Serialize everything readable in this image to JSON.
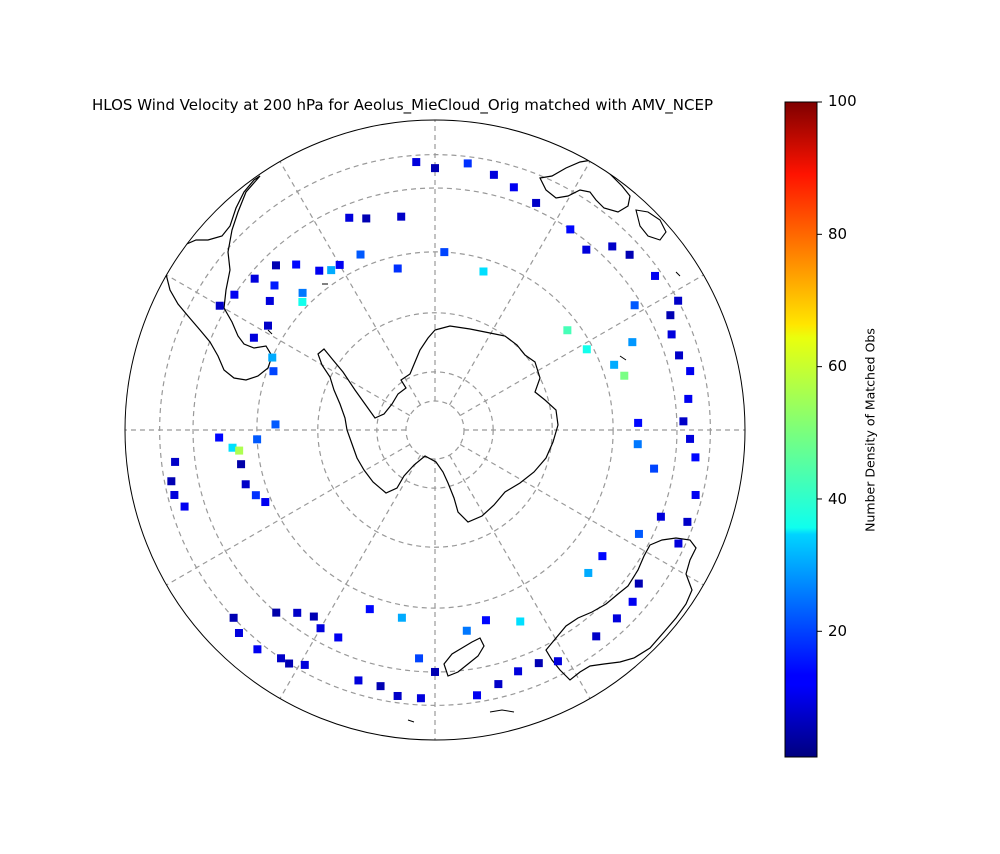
{
  "title": "HLOS Wind Velocity at 200 hPa for Aeolus_MieCloud_Orig matched with AMV_NCEP",
  "map": {
    "projection": "south-polar-stereographic",
    "background": "#ffffff",
    "coastline_color": "#000000",
    "gridline_color": "#999999",
    "gridline_style": "dashed",
    "parallel_rings": 6,
    "meridians_every_deg": 30
  },
  "colorbar": {
    "colormap": "jet",
    "min": 1,
    "max": 100,
    "ticks": [
      "20",
      "40",
      "60",
      "80",
      "100"
    ],
    "label": "Number Density of Matched Obs"
  },
  "chart_data": {
    "type": "heatmap",
    "title": "HLOS Wind Velocity at 200 hPa for Aeolus_MieCloud_Orig matched with AMV_NCEP",
    "colorbar_label": "Number Density of Matched Obs",
    "value_range": [
      1,
      100
    ],
    "note_units": "cells are [longitude_deg, latitude_deg, matched_obs_count]",
    "cells": [
      [
        -151,
        -46,
        10
      ],
      [
        -148,
        -45,
        6
      ],
      [
        -146,
        -45,
        8
      ],
      [
        -141,
        -44,
        12
      ],
      [
        -136,
        -44,
        10
      ],
      [
        -133,
        -45,
        6
      ],
      [
        -139,
        -50,
        5
      ],
      [
        -143,
        -52,
        8
      ],
      [
        -147,
        -53,
        6
      ],
      [
        -150,
        -52,
        10
      ],
      [
        -104,
        -46,
        10
      ],
      [
        -101,
        -46,
        6
      ],
      [
        -97,
        -47,
        8
      ],
      [
        -107,
        -47,
        12
      ],
      [
        -100,
        -57,
        5
      ],
      [
        -106,
        -57,
        8
      ],
      [
        -92,
        -54,
        14
      ],
      [
        -95,
        -56,
        35
      ],
      [
        -96,
        -57,
        55
      ],
      [
        -93,
        -60,
        22
      ],
      [
        -110,
        -58,
        18
      ],
      [
        -113,
        -59,
        12
      ],
      [
        -88,
        -63,
        22
      ],
      [
        -60,
        -49,
        8
      ],
      [
        -56,
        -50,
        12
      ],
      [
        -50,
        -51,
        10
      ],
      [
        -44,
        -52,
        6
      ],
      [
        -48,
        -54,
        16
      ],
      [
        -52,
        -55,
        10
      ],
      [
        -40,
        -54,
        14
      ],
      [
        -36,
        -57,
        12
      ],
      [
        -44,
        -58,
        25
      ],
      [
        -46,
        -59,
        40
      ],
      [
        -33,
        -58,
        30
      ],
      [
        -30,
        -58,
        12
      ],
      [
        -66,
        -60,
        30
      ],
      [
        -70,
        -61,
        20
      ],
      [
        -63,
        -56,
        10
      ],
      [
        -58,
        -57,
        8
      ],
      [
        -22,
        -52,
        10
      ],
      [
        -18,
        -53,
        6
      ],
      [
        -23,
        -58,
        22
      ],
      [
        -13,
        -62,
        18
      ],
      [
        -9,
        -54,
        8
      ],
      [
        0,
        -47,
        6
      ],
      [
        -4,
        -46,
        10
      ],
      [
        7,
        -46,
        18
      ],
      [
        13,
        -47,
        10
      ],
      [
        18,
        -48,
        12
      ],
      [
        24,
        -49,
        8
      ],
      [
        34,
        -50,
        14
      ],
      [
        40,
        -51,
        10
      ],
      [
        44,
        -48,
        8
      ],
      [
        48,
        -47,
        6
      ],
      [
        55,
        -46,
        12
      ],
      [
        62,
        -45,
        8
      ],
      [
        3,
        -60,
        20
      ],
      [
        17,
        -62,
        35
      ],
      [
        -177,
        -46,
        10
      ],
      [
        -172,
        -46,
        8
      ],
      [
        -168,
        -47,
        6
      ],
      [
        -163,
        -47,
        10
      ],
      [
        -176,
        -52,
        20
      ],
      [
        -180,
        -50,
        6
      ],
      [
        -160,
        -58,
        14
      ],
      [
        -170,
        -58,
        30
      ],
      [
        -155,
        -52,
        12
      ],
      [
        171,
        -46,
        12
      ],
      [
        166,
        -47,
        8
      ],
      [
        161,
        -48,
        10
      ],
      [
        156,
        -48,
        6
      ],
      [
        152,
        -47,
        10
      ],
      [
        171,
        -56,
        25
      ],
      [
        165,
        -57,
        14
      ],
      [
        156,
        -55,
        35
      ],
      [
        136,
        -47,
        10
      ],
      [
        131,
        -47,
        12
      ],
      [
        127,
        -48,
        6
      ],
      [
        142,
        -47,
        8
      ],
      [
        133,
        -55,
        30
      ],
      [
        127,
        -55,
        14
      ],
      [
        115,
        -46,
        10
      ],
      [
        110,
        -46,
        8
      ],
      [
        104,
        -46,
        12
      ],
      [
        117,
        -52,
        22
      ],
      [
        111,
        -50,
        10
      ],
      [
        96,
        -47,
        14
      ],
      [
        92,
        -48,
        10
      ],
      [
        88,
        -49,
        8
      ],
      [
        83,
        -48,
        12
      ],
      [
        94,
        -56,
        25
      ],
      [
        88,
        -56,
        14
      ],
      [
        100,
        -53,
        20
      ],
      [
        77,
        -47,
        12
      ],
      [
        73,
        -48,
        8
      ],
      [
        68,
        -48,
        10
      ],
      [
        64,
        -47,
        6
      ],
      [
        74,
        -57,
        50
      ],
      [
        70,
        -58,
        30
      ],
      [
        62,
        -61,
        40
      ],
      [
        53,
        -62,
        45
      ],
      [
        66,
        -54,
        28
      ],
      [
        58,
        -51,
        22
      ]
    ]
  }
}
